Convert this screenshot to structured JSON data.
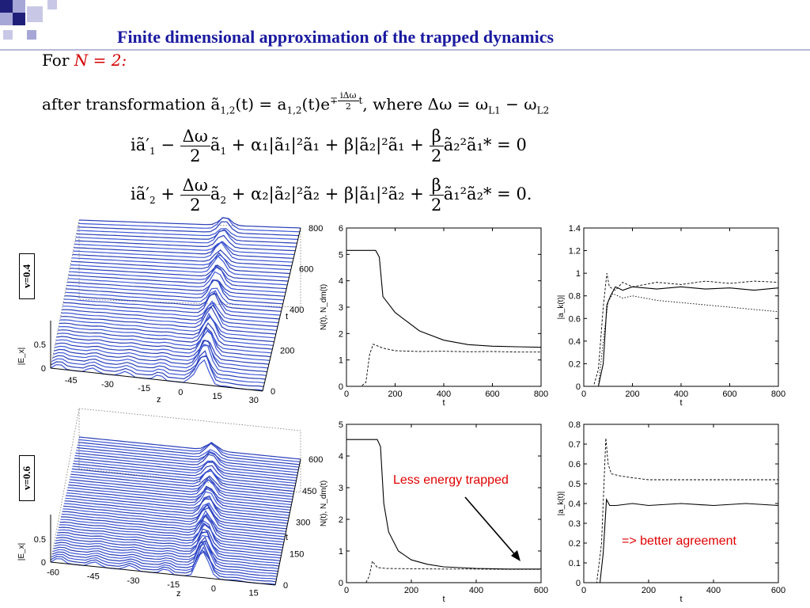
{
  "slide": {
    "title": "Finite dimensional approximation of the trapped dynamics",
    "for_label": "For",
    "n_expr": "N = 2:",
    "transform_pre": "after transformation ã",
    "transform_sub": "1,2",
    "transform_mid": "(t) = a",
    "transform_sub2": "1,2",
    "transform_exp": "(t)e",
    "exp_sign": "∓",
    "exp_num": "iΔω",
    "exp_den": "2",
    "exp_t": "t",
    "where_text": ", where Δω = ω",
    "omega_sub1": "L1",
    "minus_omega": " − ω",
    "omega_sub2": "L2",
    "eq1_a": "iã′",
    "eq1_a_sub": "1",
    "eq1_op": " − ",
    "eq1_b": "ã",
    "eq1_b_sub": "1",
    "eq1_rest": " + α₁|ã₁|²ã₁ + β|ã₂|²ã₁ + ",
    "eq1_tail": "ã₂²ã₁* = 0",
    "eq2_a": "iã′",
    "eq2_a_sub": "2",
    "eq2_op": " + ",
    "eq2_b": "ã",
    "eq2_b_sub": "2",
    "eq2_rest": " + α₂|ã₂|²ã₂ + β|ã₁|²ã₂ + ",
    "eq2_tail": "ã₁²ã₂* = 0.",
    "frac_dw_num": "Δω",
    "frac_dw_den": "2",
    "frac_beta_num": "β",
    "frac_beta_den": "2",
    "v1_label": "v=0.4",
    "v2_label": "v=0.6",
    "annotation_1": "Less energy trapped",
    "annotation_2": "=> better agreement"
  },
  "surface_plots": [
    {
      "z_label": "|E_x|",
      "z_ticks": [
        "0",
        "0.5"
      ],
      "x_label": "z",
      "x_ticks": [
        "-45",
        "-30",
        "-15",
        "0",
        "15",
        "30"
      ],
      "t_label": "t",
      "t_ticks": [
        "0",
        "200",
        "400",
        "600",
        "800"
      ]
    },
    {
      "z_label": "|E_x|",
      "z_ticks": [
        "0",
        "0.5"
      ],
      "x_label": "z",
      "x_ticks": [
        "-60",
        "-45",
        "-30",
        "-15",
        "0",
        "15"
      ],
      "t_label": "t",
      "t_ticks": [
        "0",
        "150",
        "300",
        "450",
        "600"
      ]
    }
  ],
  "chart_data": [
    {
      "type": "line",
      "xlabel": "t",
      "ylabel": "N(t), N_dm(t)",
      "xlim": [
        0,
        800
      ],
      "ylim": [
        0,
        6
      ],
      "x_ticks": [
        0,
        200,
        400,
        600,
        800
      ],
      "y_ticks": [
        0,
        1,
        2,
        3,
        4,
        5,
        6
      ],
      "series": [
        {
          "style": "solid",
          "x": [
            0,
            60,
            120,
            135,
            150,
            200,
            300,
            400,
            500,
            600,
            700,
            800
          ],
          "values": [
            5.15,
            5.15,
            5.15,
            4.9,
            3.4,
            2.8,
            2.1,
            1.75,
            1.58,
            1.52,
            1.5,
            1.48
          ]
        },
        {
          "style": "dashed",
          "x": [
            0,
            60,
            80,
            95,
            110,
            150,
            200,
            300,
            400,
            500,
            600,
            700,
            800
          ],
          "values": [
            0,
            0,
            0.15,
            1.2,
            1.6,
            1.45,
            1.35,
            1.32,
            1.33,
            1.31,
            1.32,
            1.3,
            1.3
          ]
        }
      ]
    },
    {
      "type": "line",
      "xlabel": "t",
      "ylabel": "|a_k(t)|",
      "xlim": [
        0,
        800
      ],
      "ylim": [
        0,
        1.4
      ],
      "x_ticks": [
        0,
        200,
        400,
        600,
        800
      ],
      "y_ticks": [
        0,
        0.2,
        0.4,
        0.6,
        0.8,
        1,
        1.2,
        1.4
      ],
      "series": [
        {
          "style": "solid",
          "x": [
            0,
            60,
            80,
            95,
            110,
            130,
            160,
            200,
            300,
            400,
            500,
            600,
            700,
            800
          ],
          "values": [
            0,
            0,
            0.2,
            0.72,
            0.8,
            0.88,
            0.85,
            0.88,
            0.86,
            0.88,
            0.86,
            0.87,
            0.85,
            0.87
          ]
        },
        {
          "style": "dashed",
          "x": [
            0,
            40,
            60,
            80,
            95,
            105,
            130,
            160,
            200,
            300,
            400,
            500,
            600,
            700,
            800
          ],
          "values": [
            0,
            0,
            0.15,
            0.7,
            1.0,
            0.88,
            0.85,
            0.92,
            0.88,
            0.92,
            0.9,
            0.93,
            0.91,
            0.93,
            0.92
          ]
        },
        {
          "style": "dotted",
          "x": [
            0,
            60,
            80,
            100,
            120,
            160,
            200,
            300,
            400,
            500,
            600,
            700,
            800
          ],
          "values": [
            0,
            0,
            0.4,
            0.75,
            0.82,
            0.78,
            0.8,
            0.76,
            0.74,
            0.72,
            0.7,
            0.68,
            0.66
          ]
        }
      ]
    },
    {
      "type": "line",
      "xlabel": "t",
      "ylabel": "N(t), N_dm(t)",
      "xlim": [
        0,
        600
      ],
      "ylim": [
        0,
        5
      ],
      "x_ticks": [
        0,
        200,
        400,
        600
      ],
      "y_ticks": [
        0,
        1,
        2,
        3,
        4,
        5
      ],
      "series": [
        {
          "style": "solid",
          "x": [
            0,
            50,
            95,
            105,
            115,
            130,
            160,
            200,
            250,
            300,
            400,
            500,
            600
          ],
          "values": [
            4.52,
            4.52,
            4.52,
            4.3,
            2.5,
            1.6,
            1.0,
            0.72,
            0.58,
            0.5,
            0.45,
            0.43,
            0.43
          ]
        },
        {
          "style": "dashed",
          "x": [
            0,
            60,
            70,
            80,
            95,
            120,
            200,
            300,
            400,
            500,
            600
          ],
          "values": [
            0,
            0,
            0.2,
            0.68,
            0.48,
            0.45,
            0.44,
            0.43,
            0.43,
            0.42,
            0.42
          ]
        }
      ]
    },
    {
      "type": "line",
      "xlabel": "t",
      "ylabel": "|a_k(t)|",
      "xlim": [
        0,
        600
      ],
      "ylim": [
        0,
        0.8
      ],
      "x_ticks": [
        0,
        200,
        400,
        600
      ],
      "y_ticks": [
        0,
        0.1,
        0.2,
        0.3,
        0.4,
        0.5,
        0.6,
        0.7,
        0.8
      ],
      "series": [
        {
          "style": "solid",
          "x": [
            0,
            50,
            60,
            70,
            80,
            100,
            150,
            200,
            300,
            400,
            500,
            600
          ],
          "values": [
            0,
            0,
            0.15,
            0.42,
            0.39,
            0.39,
            0.4,
            0.39,
            0.4,
            0.39,
            0.4,
            0.39
          ]
        },
        {
          "style": "dashed",
          "x": [
            0,
            40,
            55,
            68,
            75,
            85,
            110,
            150,
            200,
            300,
            400,
            500,
            600
          ],
          "values": [
            0,
            0,
            0.2,
            0.73,
            0.6,
            0.55,
            0.54,
            0.53,
            0.52,
            0.52,
            0.52,
            0.52,
            0.52
          ]
        }
      ]
    }
  ]
}
